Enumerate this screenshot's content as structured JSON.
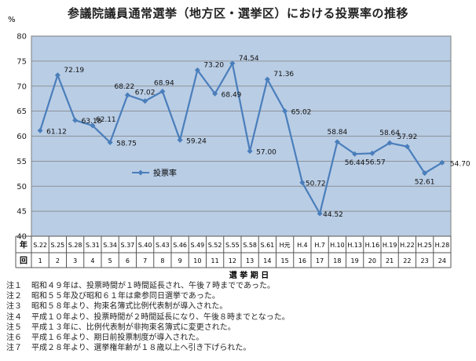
{
  "title": "参議院議員通常選挙（地方区・選挙区）における投票率の推移",
  "chart_data": {
    "type": "line",
    "title": "参議院議員通常選挙（地方区・選挙区）における投票率の推移",
    "ylabel": "%",
    "xlabel": "選 挙 期 日",
    "ylim": [
      40,
      80
    ],
    "yticks": [
      "40",
      "45",
      "50",
      "55",
      "60",
      "65",
      "70",
      "75",
      "80"
    ],
    "row_label_year": "年",
    "row_label_round": "回",
    "legend_position": "center-left",
    "grid": true,
    "years": [
      "S.22",
      "S.25",
      "S.28",
      "S.31",
      "S.34",
      "S.37",
      "S.40",
      "S.43",
      "S.46",
      "S.49",
      "S.52",
      "S.55",
      "S.58",
      "S.61",
      "H元",
      "H.4",
      "H.7",
      "H.10",
      "H.13",
      "H.16",
      "H.19",
      "H.22",
      "H.25",
      "H.28"
    ],
    "rounds": [
      "1",
      "2",
      "3",
      "4",
      "5",
      "6",
      "7",
      "8",
      "9",
      "10",
      "11",
      "12",
      "13",
      "14",
      "15",
      "16",
      "17",
      "18",
      "19",
      "20",
      "21",
      "22",
      "23",
      "24"
    ],
    "series": [
      {
        "name": "投票率",
        "color": "#4a7ebb",
        "values": [
          61.12,
          72.19,
          63.18,
          62.11,
          58.75,
          68.22,
          67.02,
          68.94,
          59.24,
          73.2,
          68.49,
          74.54,
          57.0,
          71.36,
          65.02,
          50.72,
          44.52,
          58.84,
          56.44,
          56.57,
          58.64,
          57.92,
          52.61,
          54.7
        ],
        "labels": [
          "61.12",
          "72.19",
          "63.18",
          "62.11",
          "58.75",
          "68.22",
          "67.02",
          "68.94",
          "59.24",
          "73.20",
          "68.49",
          "74.54",
          "57.00",
          "71.36",
          "65.02",
          "50.72",
          "44.52",
          "58.84",
          "56.44",
          "56.57",
          "58.64",
          "57.92",
          "52.61",
          "54.70"
        ]
      }
    ],
    "plot_bg": "#b9cde5"
  },
  "notes": [
    {
      "label": "注１",
      "text": "昭和４９年は、投票時間が１時間延長され、午後７時までであった。"
    },
    {
      "label": "注２",
      "text": "昭和５５年及び昭和６１年は衆参同日選挙であった。"
    },
    {
      "label": "注３",
      "text": "昭和５８年より、拘束名簿式比例代表制が導入された。"
    },
    {
      "label": "注４",
      "text": "平成１０年より、投票時間が２時間延長になり、午後８時までとなった。"
    },
    {
      "label": "注５",
      "text": "平成１３年に、比例代表制が非拘束名簿式に変更された。"
    },
    {
      "label": "注６",
      "text": "平成１６年より、期日前投票制度が導入された。"
    },
    {
      "label": "注７",
      "text": "平成２８年より、選挙権年齢が１８歳以上へ引き下げられた。"
    }
  ]
}
